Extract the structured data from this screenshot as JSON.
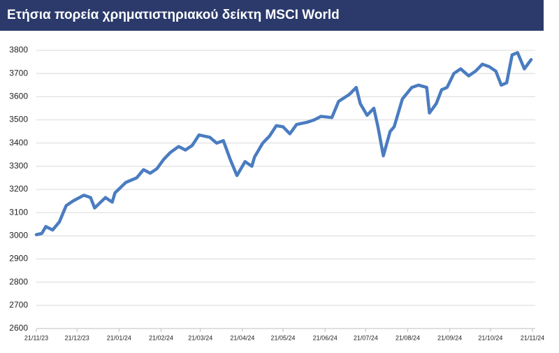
{
  "chart_data": {
    "type": "line",
    "title": "Ετήσια πορεία χρηματιστηριακού δείκτη MSCI World",
    "x": [
      "21/11/23",
      "25/11/23",
      "28/11/23",
      "03/12/23",
      "08/12/23",
      "13/12/23",
      "18/12/23",
      "26/12/23",
      "31/12/23",
      "03/01/24",
      "11/01/24",
      "16/01/24",
      "18/01/24",
      "26/01/24",
      "03/02/24",
      "08/02/24",
      "13/02/24",
      "18/02/24",
      "23/02/24",
      "28/02/24",
      "05/03/24",
      "10/03/24",
      "15/03/24",
      "20/03/24",
      "28/03/24",
      "02/04/24",
      "07/04/24",
      "12/04/24",
      "17/04/24",
      "23/04/24",
      "28/04/24",
      "30/04/24",
      "06/05/24",
      "11/05/24",
      "16/05/24",
      "21/05/24",
      "26/05/24",
      "31/05/24",
      "08/06/24",
      "13/06/24",
      "18/06/24",
      "26/06/24",
      "01/07/24",
      "09/07/24",
      "14/07/24",
      "17/07/24",
      "22/07/24",
      "27/07/24",
      "30/07/24",
      "03/08/24",
      "08/08/24",
      "11/08/24",
      "17/08/24",
      "24/08/24",
      "29/08/24",
      "04/09/24",
      "06/09/24",
      "11/09/24",
      "15/09/24",
      "19/09/24",
      "24/09/24",
      "29/09/24",
      "05/10/24",
      "10/10/24",
      "15/10/24",
      "20/10/24",
      "25/10/24",
      "29/10/24",
      "02/11/24",
      "06/11/24",
      "10/11/24",
      "15/11/24",
      "20/11/24"
    ],
    "series": [
      {
        "color": "#4a7cc0",
        "values": [
          3005,
          3010,
          3040,
          3025,
          3060,
          3130,
          3150,
          3175,
          3165,
          3120,
          3165,
          3145,
          3185,
          3230,
          3250,
          3285,
          3270,
          3290,
          3330,
          3360,
          3385,
          3370,
          3390,
          3435,
          3425,
          3400,
          3410,
          3330,
          3260,
          3320,
          3300,
          3340,
          3400,
          3430,
          3475,
          3470,
          3440,
          3480,
          3490,
          3500,
          3515,
          3510,
          3580,
          3610,
          3640,
          3570,
          3520,
          3550,
          3470,
          3345,
          3450,
          3470,
          3590,
          3640,
          3650,
          3640,
          3530,
          3570,
          3630,
          3640,
          3700,
          3720,
          3690,
          3710,
          3740,
          3730,
          3710,
          3650,
          3660,
          3780,
          3790,
          3720,
          3760
        ]
      }
    ],
    "ylim": [
      2600,
      3800
    ],
    "yticks": [
      2600,
      2700,
      2800,
      2900,
      3000,
      3100,
      3200,
      3300,
      3400,
      3500,
      3600,
      3700,
      3800
    ],
    "xlim": [
      "21/11/23",
      "21/11/24"
    ],
    "xticks": [
      "21/11/23",
      "21/12/23",
      "21/01/24",
      "21/02/24",
      "21/03/24",
      "21/04/24",
      "21/05/24",
      "21/06/24",
      "21/07/24",
      "21/08/24",
      "21/09/24",
      "21/10/24",
      "21/11/24"
    ],
    "grid": true
  }
}
